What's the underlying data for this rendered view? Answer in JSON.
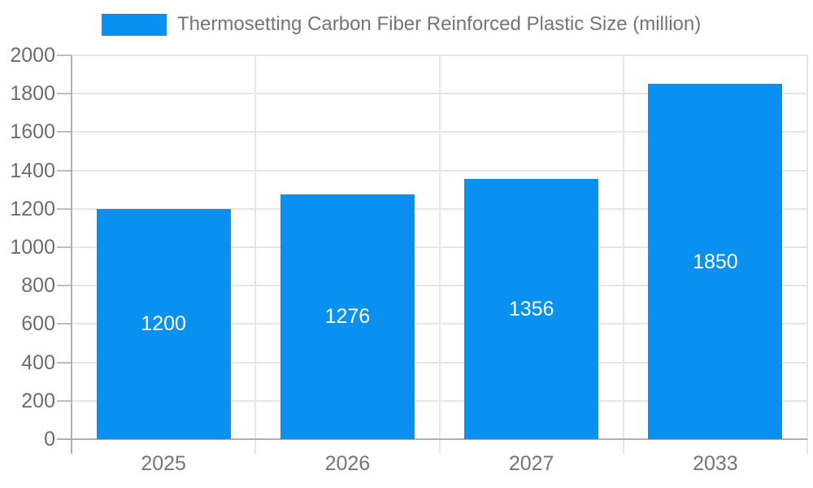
{
  "legend": {
    "label": "Thermosetting Carbon Fiber Reinforced Plastic Size (million)"
  },
  "colors": {
    "bar": "#0991f2",
    "background": "#ffffff",
    "axis_line": "#b0b0b0",
    "gridline": "#e6e6e6",
    "tick": "#bdbdbd",
    "y_label": "#6d6d6d",
    "x_label": "#757575",
    "legend_text": "#757575",
    "data_label": "#ffffff"
  },
  "chart_data": {
    "type": "bar",
    "categories": [
      "2025",
      "2026",
      "2027",
      "2033"
    ],
    "values": [
      1200,
      1276,
      1356,
      1850
    ],
    "series": [
      {
        "name": "Thermosetting Carbon Fiber Reinforced Plastic Size (million)",
        "values": [
          1200,
          1276,
          1356,
          1850
        ]
      }
    ],
    "data_labels": [
      "1200",
      "1276",
      "1356",
      "1850"
    ],
    "title": "",
    "xlabel": "",
    "ylabel": "",
    "ylim": [
      0,
      2000
    ],
    "ytick_step": 200,
    "ytick_labels": [
      "0",
      "200",
      "400",
      "600",
      "800",
      "1000",
      "1200",
      "1400",
      "1600",
      "1800",
      "2000"
    ],
    "grid": true,
    "legend_position": "top-left"
  }
}
